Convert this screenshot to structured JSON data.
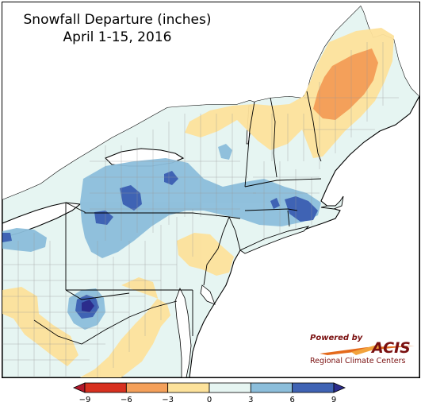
{
  "map": {
    "title_line1": "Snowfall Departure (inches)",
    "title_line2": "April 1-15, 2016",
    "background": "#ffffff",
    "land_fill": "#e6f5f2"
  },
  "logo": {
    "powered_by": "Powered by",
    "brand": "ACIS",
    "subtitle": "Regional Climate Centers",
    "color": "#7a1010"
  },
  "legend": {
    "ticks": [
      "−9",
      "−6",
      "−3",
      "0",
      "3",
      "6",
      "9"
    ],
    "bins": [
      {
        "from": -9,
        "to": -6,
        "color": "#d7301f"
      },
      {
        "from": -6,
        "to": -3,
        "color": "#f4a05a"
      },
      {
        "from": -3,
        "to": 0,
        "color": "#fde29b"
      },
      {
        "from": 0,
        "to": 3,
        "color": "#e6f5f2"
      },
      {
        "from": 3,
        "to": 6,
        "color": "#8cbedb"
      },
      {
        "from": 6,
        "to": 9,
        "color": "#3f63b4"
      }
    ],
    "under_color": "#b2182b",
    "over_color": "#2b2c8c"
  }
}
